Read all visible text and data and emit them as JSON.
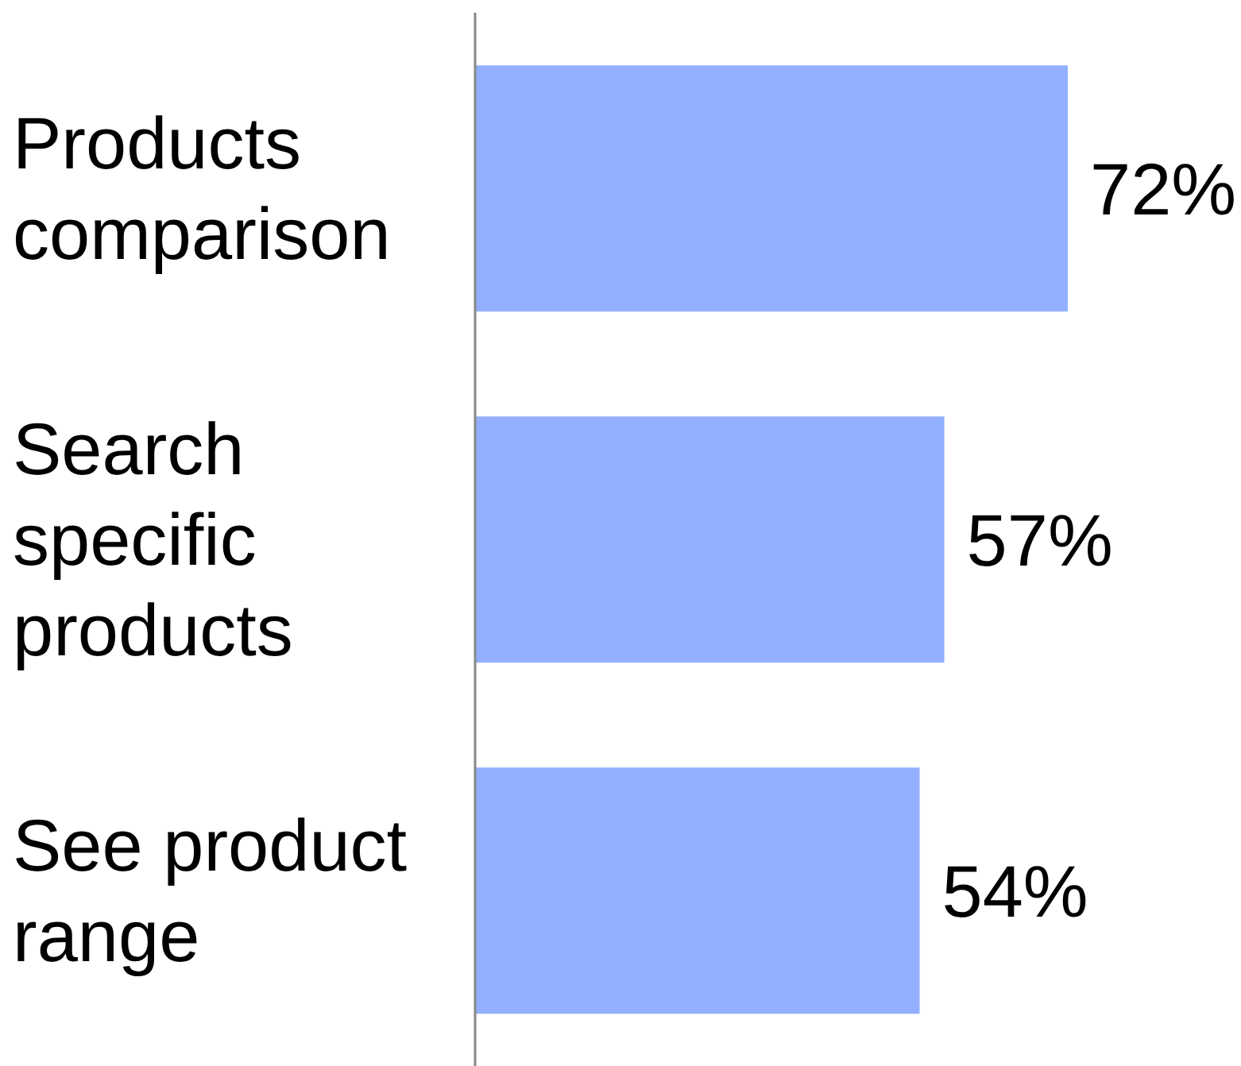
{
  "chart_data": {
    "type": "bar",
    "orientation": "horizontal",
    "categories": [
      "Products comparison",
      "Search specific products",
      "See product range"
    ],
    "values": [
      72,
      57,
      54
    ],
    "value_labels": [
      "72%",
      "57%",
      "54%"
    ],
    "color": "#92b0ff"
  }
}
